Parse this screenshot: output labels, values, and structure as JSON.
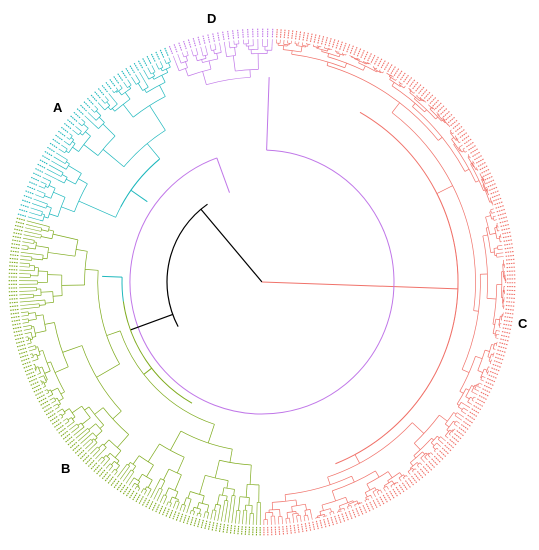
{
  "diagram": {
    "type": "circular-dendrogram",
    "root_color": "#000000",
    "clusters": [
      {
        "id": "A",
        "label": "A",
        "color": "#1fb8bd",
        "leaf_count": 48
      },
      {
        "id": "B",
        "label": "B",
        "color": "#7fab1e",
        "leaf_count": 125
      },
      {
        "id": "C",
        "label": "C",
        "color": "#f0726a",
        "leaf_count": 200
      },
      {
        "id": "D",
        "label": "D",
        "color": "#c077e8",
        "leaf_count": 22
      }
    ]
  }
}
